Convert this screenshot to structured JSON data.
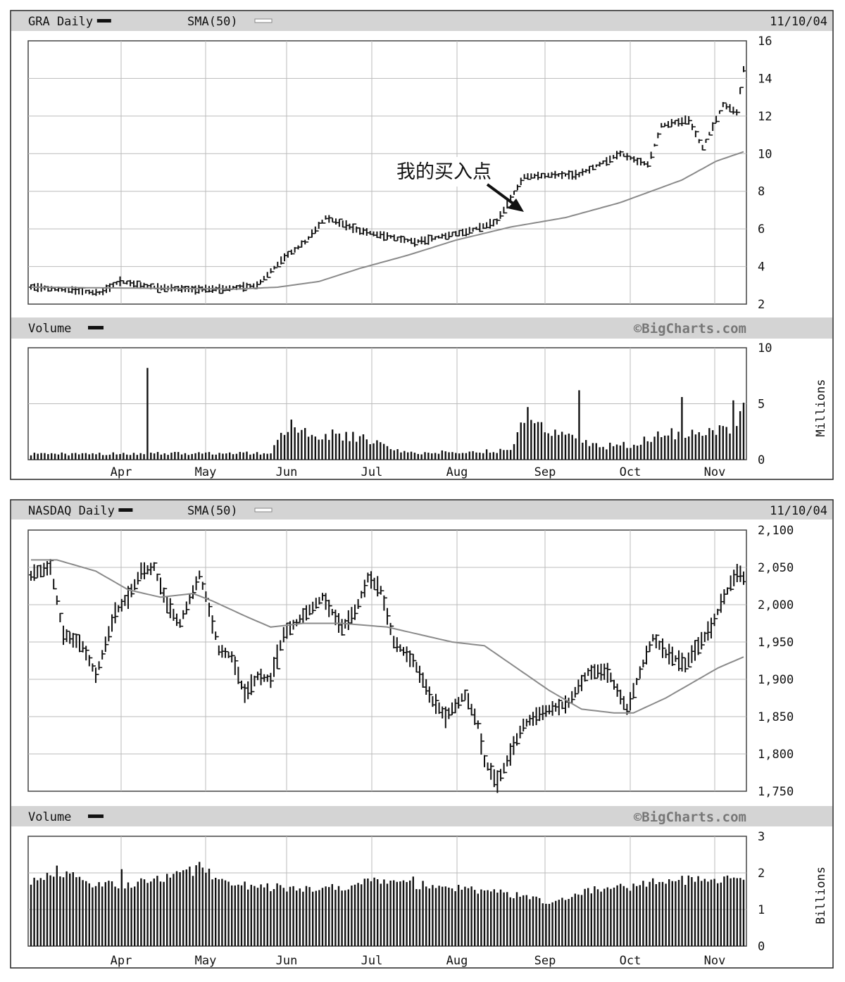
{
  "chart_data": [
    {
      "type": "ohlc",
      "panel_title": "GRA Daily",
      "sma_label": "SMA(50)",
      "date": "11/10/04",
      "price_axis": {
        "ylim": [
          2,
          16
        ],
        "ticks": [
          "16",
          "14",
          "12",
          "10",
          "8",
          "6",
          "4",
          "2"
        ]
      },
      "volume_axis": {
        "ylim": [
          0,
          10
        ],
        "ticks": [
          "10",
          "5",
          "0"
        ],
        "unit": "Millions"
      },
      "volume_label": "Volume",
      "watermark": "©BigCharts.com",
      "months": [
        "Apr",
        "May",
        "Jun",
        "Jul",
        "Aug",
        "Sep",
        "Oct",
        "Nov"
      ],
      "annotation": "我的买入点",
      "series": [
        {
          "name": "price",
          "anchors": [
            [
              0,
              2.9
            ],
            [
              8,
              2.8
            ],
            [
              20,
              2.6
            ],
            [
              26,
              3.2
            ],
            [
              36,
              2.9
            ],
            [
              45,
              2.8
            ],
            [
              55,
              2.8
            ],
            [
              66,
              3.0
            ],
            [
              74,
              4.5
            ],
            [
              80,
              5.3
            ],
            [
              86,
              6.6
            ],
            [
              96,
              5.9
            ],
            [
              112,
              5.3
            ],
            [
              128,
              5.9
            ],
            [
              136,
              6.4
            ],
            [
              140,
              7.6
            ],
            [
              144,
              8.8
            ],
            [
              160,
              8.9
            ],
            [
              172,
              10.0
            ],
            [
              180,
              9.4
            ],
            [
              184,
              11.5
            ],
            [
              192,
              11.8
            ],
            [
              196,
              10.3
            ],
            [
              202,
              12.6
            ],
            [
              206,
              12.2
            ],
            [
              208,
              14.5
            ]
          ]
        },
        {
          "name": "SMA(50)",
          "anchors": [
            [
              0,
              2.9
            ],
            [
              60,
              2.8
            ],
            [
              72,
              2.9
            ],
            [
              84,
              3.2
            ],
            [
              96,
              3.9
            ],
            [
              110,
              4.6
            ],
            [
              124,
              5.4
            ],
            [
              140,
              6.1
            ],
            [
              156,
              6.6
            ],
            [
              172,
              7.4
            ],
            [
              190,
              8.6
            ],
            [
              200,
              9.6
            ],
            [
              208,
              10.1
            ]
          ]
        },
        {
          "name": "Volume",
          "anchors": [
            [
              0,
              0.5
            ],
            [
              70,
              0.6
            ],
            [
              76,
              3.3
            ],
            [
              82,
              2.3
            ],
            [
              95,
              2.0
            ],
            [
              110,
              0.6
            ],
            [
              140,
              0.8
            ],
            [
              144,
              4.2
            ],
            [
              150,
              2.5
            ],
            [
              156,
              2.0
            ],
            [
              166,
              1.2
            ],
            [
              176,
              1.3
            ],
            [
              184,
              2.6
            ],
            [
              192,
              2.2
            ],
            [
              204,
              2.8
            ],
            [
              208,
              4.5
            ]
          ],
          "spikes": [
            [
              34,
              8.2
            ],
            [
              145,
              4.7
            ],
            [
              160,
              6.2
            ],
            [
              190,
              5.6
            ],
            [
              205,
              5.3
            ]
          ]
        }
      ]
    },
    {
      "type": "ohlc",
      "panel_title": "NASDAQ Daily",
      "sma_label": "SMA(50)",
      "date": "11/10/04",
      "price_axis": {
        "ylim": [
          1750,
          2100
        ],
        "ticks": [
          "2,100",
          "2,050",
          "2,000",
          "1,950",
          "1,900",
          "1,850",
          "1,800",
          "1,750"
        ]
      },
      "volume_axis": {
        "ylim": [
          0,
          3
        ],
        "ticks": [
          "3",
          "2",
          "1",
          "0"
        ],
        "unit": "Billions"
      },
      "volume_label": "Volume",
      "watermark": "©BigCharts.com",
      "months": [
        "Apr",
        "May",
        "Jun",
        "Jul",
        "Aug",
        "Sep",
        "Oct",
        "Nov"
      ],
      "series": [
        {
          "name": "price",
          "anchors": [
            [
              0,
              2040
            ],
            [
              6,
              2050
            ],
            [
              10,
              1960
            ],
            [
              16,
              1945
            ],
            [
              20,
              1905
            ],
            [
              26,
              1990
            ],
            [
              30,
              2010
            ],
            [
              34,
              2045
            ],
            [
              38,
              2050
            ],
            [
              42,
              2000
            ],
            [
              46,
              1975
            ],
            [
              52,
              2040
            ],
            [
              54,
              2010
            ],
            [
              58,
              1940
            ],
            [
              62,
              1930
            ],
            [
              66,
              1880
            ],
            [
              70,
              1905
            ],
            [
              74,
              1900
            ],
            [
              78,
              1960
            ],
            [
              84,
              1985
            ],
            [
              90,
              2010
            ],
            [
              96,
              1970
            ],
            [
              100,
              1990
            ],
            [
              104,
              2035
            ],
            [
              108,
              2020
            ],
            [
              112,
              1950
            ],
            [
              118,
              1925
            ],
            [
              124,
              1870
            ],
            [
              128,
              1850
            ],
            [
              134,
              1880
            ],
            [
              138,
              1840
            ],
            [
              140,
              1790
            ],
            [
              144,
              1762
            ],
            [
              148,
              1800
            ],
            [
              152,
              1840
            ],
            [
              158,
              1855
            ],
            [
              166,
              1870
            ],
            [
              172,
              1910
            ],
            [
              178,
              1910
            ],
            [
              184,
              1860
            ],
            [
              188,
              1910
            ],
            [
              192,
              1955
            ],
            [
              196,
              1935
            ],
            [
              202,
              1920
            ],
            [
              206,
              1945
            ],
            [
              210,
              1970
            ],
            [
              214,
              2010
            ],
            [
              218,
              2045
            ],
            [
              220,
              2035
            ]
          ]
        },
        {
          "name": "SMA(50)",
          "anchors": [
            [
              0,
              2060
            ],
            [
              8,
              2060
            ],
            [
              20,
              2045
            ],
            [
              30,
              2020
            ],
            [
              40,
              2010
            ],
            [
              50,
              2015
            ],
            [
              56,
              2005
            ],
            [
              66,
              1985
            ],
            [
              74,
              1970
            ],
            [
              84,
              1975
            ],
            [
              96,
              1975
            ],
            [
              110,
              1970
            ],
            [
              120,
              1960
            ],
            [
              130,
              1950
            ],
            [
              140,
              1945
            ],
            [
              150,
              1915
            ],
            [
              160,
              1885
            ],
            [
              170,
              1860
            ],
            [
              180,
              1855
            ],
            [
              186,
              1855
            ],
            [
              196,
              1875
            ],
            [
              204,
              1895
            ],
            [
              212,
              1915
            ],
            [
              220,
              1930
            ]
          ]
        },
        {
          "name": "Volume",
          "anchors": [
            [
              0,
              1.8
            ],
            [
              10,
              2.0
            ],
            [
              20,
              1.7
            ],
            [
              30,
              1.7
            ],
            [
              40,
              1.8
            ],
            [
              52,
              2.1
            ],
            [
              62,
              1.7
            ],
            [
              76,
              1.6
            ],
            [
              96,
              1.6
            ],
            [
              104,
              1.8
            ],
            [
              116,
              1.7
            ],
            [
              130,
              1.6
            ],
            [
              150,
              1.4
            ],
            [
              160,
              1.2
            ],
            [
              170,
              1.5
            ],
            [
              184,
              1.6
            ],
            [
              196,
              1.8
            ],
            [
              210,
              1.8
            ],
            [
              220,
              1.8
            ]
          ],
          "spikes": [
            [
              8,
              2.2
            ],
            [
              28,
              2.1
            ],
            [
              52,
              2.3
            ],
            [
              118,
              1.9
            ]
          ]
        }
      ]
    }
  ]
}
